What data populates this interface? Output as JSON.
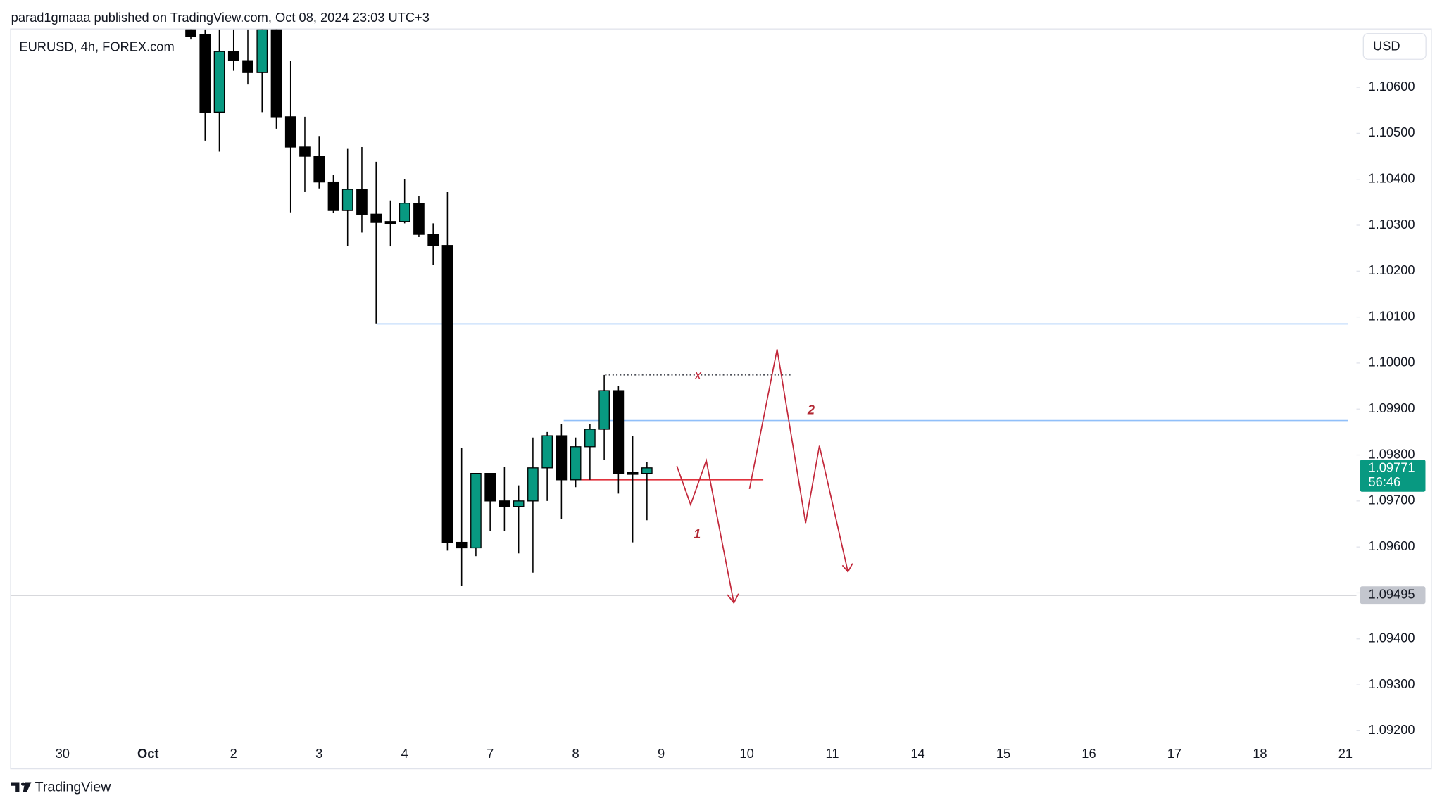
{
  "header": "parad1gmaaa published on TradingView.com, Oct 08, 2024 23:03 UTC+3",
  "footer": {
    "brand": "TradingView"
  },
  "chart_data": {
    "type": "candlestick",
    "title": "EURUSD, 4h, FOREX.com",
    "currency": "USD",
    "up_color": "#089981",
    "down_color": "#000000",
    "grid": false,
    "categories": [
      "30",
      null,
      null,
      null,
      null,
      null,
      "Oct",
      null,
      null,
      null,
      null,
      null,
      "2",
      null,
      null,
      null,
      null,
      null,
      "3",
      null,
      null,
      null,
      null,
      null,
      "4",
      null,
      null,
      null,
      null,
      null,
      "7",
      null,
      null,
      null,
      null,
      null,
      "8",
      null,
      null,
      null,
      null,
      null,
      "9",
      null,
      null,
      null,
      null,
      null,
      "10",
      null,
      null,
      null,
      null,
      null,
      "11",
      null,
      null,
      null,
      null,
      null,
      "14",
      null,
      null,
      null,
      null,
      null,
      "15",
      null,
      null,
      null,
      null,
      null,
      "16",
      null,
      null,
      null,
      null,
      null,
      "17",
      null,
      null,
      null,
      null,
      null,
      "18",
      null,
      null,
      null,
      null,
      null,
      "21"
    ],
    "open": [
      null,
      null,
      null,
      null,
      null,
      null,
      null,
      null,
      null,
      1.10726,
      1.10714,
      1.10546,
      1.10678,
      1.10658,
      1.10632,
      1.10726,
      1.10536,
      1.1047,
      1.1045,
      1.10394,
      1.10332,
      1.10378,
      1.10324,
      1.10308,
      1.10308,
      1.10348,
      1.1028,
      1.10256,
      1.0961,
      1.09598,
      1.0976,
      1.097,
      1.09688,
      1.097,
      1.09772,
      1.09842,
      1.09746,
      1.09818,
      1.09856,
      1.0994,
      1.09762,
      1.0976,
      null,
      null,
      null,
      null,
      null,
      null,
      null,
      null,
      null,
      null,
      null,
      null,
      null,
      null,
      null,
      null,
      null,
      null,
      null,
      null,
      null,
      null,
      null,
      null,
      null,
      null,
      null,
      null,
      null,
      null,
      null,
      null,
      null,
      null,
      null,
      null,
      null,
      null,
      null,
      null,
      null,
      null,
      null,
      null,
      null,
      null,
      null,
      null,
      null
    ],
    "high": [
      null,
      null,
      null,
      null,
      null,
      null,
      null,
      null,
      null,
      1.1073,
      1.10726,
      1.10726,
      1.10726,
      1.10726,
      1.1073,
      1.1073,
      1.10658,
      1.10536,
      1.10494,
      1.1041,
      1.10466,
      1.1047,
      1.10438,
      1.10354,
      1.104,
      1.10364,
      1.10304,
      1.10372,
      1.09816,
      1.0976,
      1.0976,
      1.09774,
      1.09734,
      1.09838,
      1.0985,
      1.09868,
      1.09838,
      1.09868,
      1.09974,
      1.0995,
      1.09842,
      1.09784,
      null,
      null,
      null,
      null,
      null,
      null,
      null,
      null,
      null,
      null,
      null,
      null,
      null,
      null,
      null,
      null,
      null,
      null,
      null,
      null,
      null,
      null,
      null,
      null,
      null,
      null,
      null,
      null,
      null,
      null,
      null,
      null,
      null,
      null,
      null,
      null,
      null,
      null,
      null,
      null,
      null,
      null,
      null,
      null,
      null,
      null,
      null,
      null,
      null
    ],
    "low": [
      null,
      null,
      null,
      null,
      null,
      null,
      null,
      null,
      null,
      1.10704,
      1.10484,
      1.1046,
      1.10636,
      1.10606,
      1.10546,
      1.1051,
      1.10328,
      1.10372,
      1.1038,
      1.10326,
      1.10254,
      1.10284,
      1.10086,
      1.10254,
      1.10304,
      1.10274,
      1.10214,
      1.09592,
      1.09516,
      1.0958,
      1.09634,
      1.09634,
      1.09586,
      1.09544,
      1.097,
      1.0966,
      1.0973,
      1.09746,
      1.0979,
      1.09716,
      1.0961,
      1.09658,
      null,
      null,
      null,
      null,
      null,
      null,
      null,
      null,
      null,
      null,
      null,
      null,
      null,
      null,
      null,
      null,
      null,
      null,
      null,
      null,
      null,
      null,
      null,
      null,
      null,
      null,
      null,
      null,
      null,
      null,
      null,
      null,
      null,
      null,
      null,
      null,
      null,
      null,
      null,
      null,
      null,
      null,
      null,
      null,
      null,
      null,
      null,
      null,
      null
    ],
    "close": [
      null,
      null,
      null,
      null,
      null,
      null,
      null,
      null,
      null,
      1.1071,
      1.10546,
      1.10678,
      1.10658,
      1.10632,
      1.10726,
      1.10536,
      1.1047,
      1.1045,
      1.10394,
      1.10332,
      1.10378,
      1.10324,
      1.10306,
      1.10304,
      1.10348,
      1.1028,
      1.10256,
      1.0961,
      1.09598,
      1.0976,
      1.097,
      1.09688,
      1.097,
      1.09772,
      1.09842,
      1.09746,
      1.09818,
      1.09856,
      1.0994,
      1.0976,
      1.09758,
      1.09772,
      null,
      null,
      null,
      null,
      null,
      null,
      null,
      null,
      null,
      null,
      null,
      null,
      null,
      null,
      null,
      null,
      null,
      null,
      null,
      null,
      null,
      null,
      null,
      null,
      null,
      null,
      null,
      null,
      null,
      null,
      null,
      null,
      null,
      null,
      null,
      null,
      null,
      null,
      null,
      null,
      null,
      null,
      null,
      null,
      null,
      null,
      null,
      null,
      null
    ],
    "ylim": [
      1.09174,
      1.10726
    ],
    "yticks": [
      {
        "value": 1.092,
        "label": "1.09200"
      },
      {
        "value": 1.093,
        "label": "1.09300"
      },
      {
        "value": 1.094,
        "label": "1.09400"
      },
      {
        "value": 1.095,
        "label": "1.09500"
      },
      {
        "value": 1.096,
        "label": "1.09600"
      },
      {
        "value": 1.097,
        "label": "1.09700"
      },
      {
        "value": 1.098,
        "label": "1.09800"
      },
      {
        "value": 1.099,
        "label": "1.09900"
      },
      {
        "value": 1.1,
        "label": "1.10000"
      },
      {
        "value": 1.101,
        "label": "1.10100"
      },
      {
        "value": 1.102,
        "label": "1.10200"
      },
      {
        "value": 1.103,
        "label": "1.10300"
      },
      {
        "value": 1.104,
        "label": "1.10400"
      },
      {
        "value": 1.105,
        "label": "1.10500"
      },
      {
        "value": 1.106,
        "label": "1.10600"
      }
    ],
    "last_price": 1.09771,
    "countdown": "56:46",
    "price_line": 1.09495,
    "levels": [
      {
        "value": 1.10085,
        "color": "#90bff9"
      },
      {
        "value": 1.09875,
        "color": "#90bff9"
      },
      {
        "value": 1.09746,
        "color": "#e0323c"
      },
      {
        "value": 1.09974,
        "color": "#131722",
        "dashed": true
      }
    ],
    "annotations": [
      {
        "text": "x"
      },
      {
        "text": "1"
      },
      {
        "text": "2"
      }
    ]
  }
}
